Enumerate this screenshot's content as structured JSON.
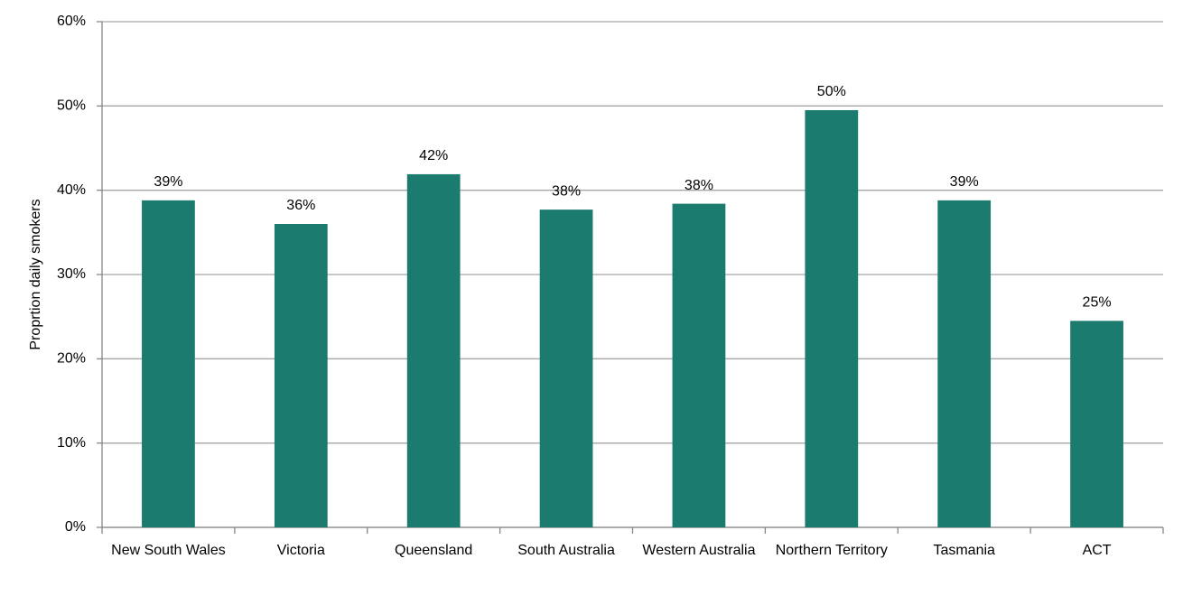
{
  "chart_data": {
    "type": "bar",
    "y_label": "Proprtion daily smokers",
    "categories": [
      "New South Wales",
      "Victoria",
      "Queensland",
      "South Australia",
      "Western Australia",
      "Northern Territory",
      "Tasmania",
      "ACT"
    ],
    "values": [
      38.8,
      36.0,
      41.9,
      37.7,
      38.4,
      49.5,
      38.8,
      24.5
    ],
    "value_labels": [
      "39%",
      "36%",
      "42%",
      "38%",
      "38%",
      "50%",
      "39%",
      "25%"
    ],
    "color": "#1b7b6e",
    "ylim": [
      0,
      60
    ],
    "yticks": [
      {
        "value": 0,
        "label": "0%"
      },
      {
        "value": 10,
        "label": "10%"
      },
      {
        "value": 20,
        "label": "20%"
      },
      {
        "value": 30,
        "label": "30%"
      },
      {
        "value": 40,
        "label": "40%"
      },
      {
        "value": 50,
        "label": "50%"
      },
      {
        "value": 60,
        "label": "60%"
      }
    ],
    "grid": true
  }
}
